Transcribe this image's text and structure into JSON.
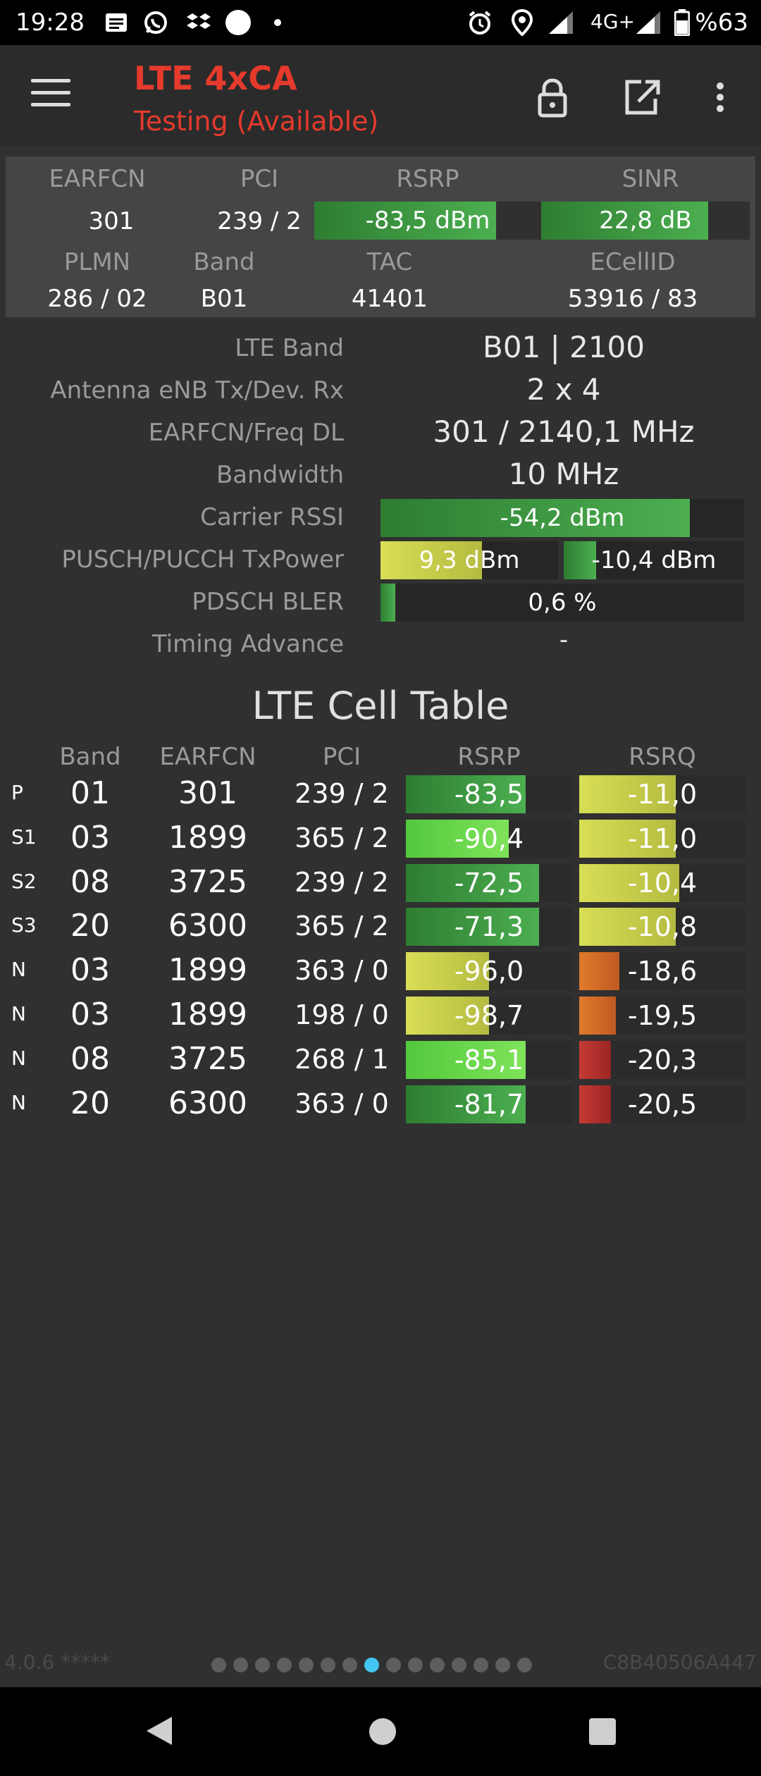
{
  "status_bar": {
    "time": "19:28",
    "network": "4G+",
    "battery": "%63",
    "left_icons": [
      "message-icon",
      "whatsapp-icon",
      "dropbox-icon",
      "circle-icon",
      "dot-icon"
    ],
    "right_icons": [
      "alarm-icon",
      "location-icon",
      "signal-icon",
      "signal-icon",
      "battery-icon"
    ]
  },
  "toolbar": {
    "title": "LTE 4xCA",
    "subtitle": "Testing (Available)",
    "title_color": "#e53a2c",
    "actions": [
      "menu-icon",
      "lock-icon",
      "open-external-icon",
      "more-vert-icon"
    ]
  },
  "summary": {
    "labels": {
      "earfcn": "EARFCN",
      "pci": "PCI",
      "rsrp": "RSRP",
      "sinr": "SINR",
      "plmn": "PLMN",
      "band": "Band",
      "tac": "TAC",
      "ecellid": "ECellID"
    },
    "values": {
      "earfcn": "301",
      "pci": "239 / 2",
      "rsrp": "-83,5 dBm",
      "rsrp_level": 0.8,
      "sinr": "22,8 dB",
      "sinr_level": 0.8,
      "plmn": "286 / 02",
      "band": "B01",
      "tac": "41401",
      "ecellid": "53916 / 83"
    }
  },
  "details": {
    "lte_band_label": "LTE Band",
    "lte_band_value": "B01 | 2100",
    "antenna_label": "Antenna eNB Tx/Dev. Rx",
    "antenna_value": "2 x 4",
    "earfcn_freq_label": "EARFCN/Freq DL",
    "earfcn_freq_value": "301 / 2140,1 MHz",
    "bandwidth_label": "Bandwidth",
    "bandwidth_value": "10 MHz",
    "carrier_rssi_label": "Carrier RSSI",
    "carrier_rssi_value": "-54,2 dBm",
    "carrier_rssi_level": 0.85,
    "txpower_label": "PUSCH/PUCCH TxPower",
    "pusch_value": "9,3 dBm",
    "pusch_level": 0.57,
    "pucch_value": "-10,4 dBm",
    "pucch_level": 0.18,
    "bler_label": "PDSCH BLER",
    "bler_value": "0,6 %",
    "bler_level": 0.04,
    "timing_label": "Timing Advance",
    "timing_value": "-"
  },
  "cell_table": {
    "title": "LTE Cell Table",
    "headers": [
      "Band",
      "EARFCN",
      "PCI",
      "RSRP",
      "RSRQ"
    ],
    "rows": [
      {
        "tag": "P",
        "band": "01",
        "earfcn": "301",
        "pci": "239 / 2",
        "rsrp": "-83,5",
        "rsrp_level": 0.72,
        "rsrp_color": "green",
        "rsrq": "-11,0",
        "rsrq_level": 0.58,
        "rsrq_color": "yellow"
      },
      {
        "tag": "S1",
        "band": "03",
        "earfcn": "1899",
        "pci": "365 / 2",
        "rsrp": "-90,4",
        "rsrp_level": 0.62,
        "rsrp_color": "lime",
        "rsrq": "-11,0",
        "rsrq_level": 0.58,
        "rsrq_color": "yellow"
      },
      {
        "tag": "S2",
        "band": "08",
        "earfcn": "3725",
        "pci": "239 / 2",
        "rsrp": "-72,5",
        "rsrp_level": 0.8,
        "rsrp_color": "green",
        "rsrq": "-10,4",
        "rsrq_level": 0.6,
        "rsrq_color": "yellow"
      },
      {
        "tag": "S3",
        "band": "20",
        "earfcn": "6300",
        "pci": "365 / 2",
        "rsrp": "-71,3",
        "rsrp_level": 0.8,
        "rsrp_color": "green",
        "rsrq": "-10,8",
        "rsrq_level": 0.58,
        "rsrq_color": "yellow"
      },
      {
        "tag": "N",
        "band": "03",
        "earfcn": "1899",
        "pci": "363 / 0",
        "rsrp": "-96,0",
        "rsrp_level": 0.5,
        "rsrp_color": "yellow",
        "rsrq": "-18,6",
        "rsrq_level": 0.24,
        "rsrq_color": "orange"
      },
      {
        "tag": "N",
        "band": "03",
        "earfcn": "1899",
        "pci": "198 / 0",
        "rsrp": "-98,7",
        "rsrp_level": 0.5,
        "rsrp_color": "yellow",
        "rsrq": "-19,5",
        "rsrq_level": 0.22,
        "rsrq_color": "orange"
      },
      {
        "tag": "N",
        "band": "08",
        "earfcn": "3725",
        "pci": "268 / 1",
        "rsrp": "-85,1",
        "rsrp_level": 0.72,
        "rsrp_color": "lime",
        "rsrq": "-20,3",
        "rsrq_level": 0.19,
        "rsrq_color": "red"
      },
      {
        "tag": "N",
        "band": "20",
        "earfcn": "6300",
        "pci": "363 / 0",
        "rsrp": "-81,7",
        "rsrp_level": 0.72,
        "rsrp_color": "green",
        "rsrq": "-20,5",
        "rsrq_level": 0.19,
        "rsrq_color": "red"
      }
    ]
  },
  "footer": {
    "version": "4.0.6 *****",
    "id": "C8B40506A447",
    "page_count": 15,
    "active_page": 8
  }
}
